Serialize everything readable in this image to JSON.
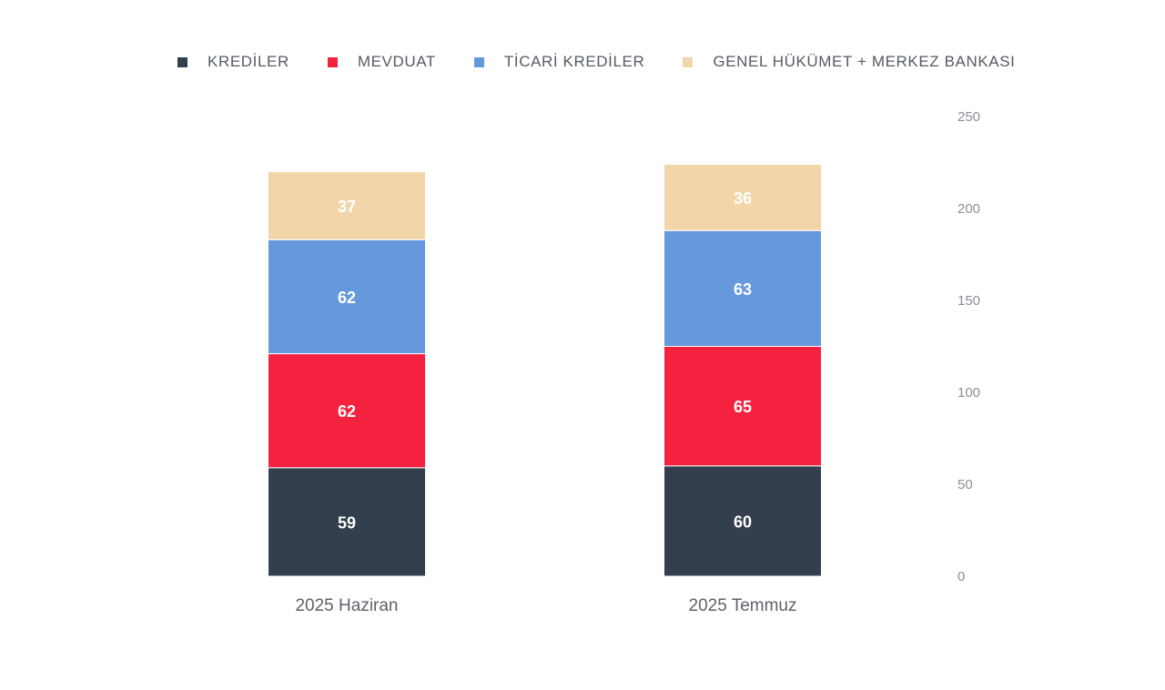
{
  "chart_data": {
    "type": "bar",
    "stacked": true,
    "categories": [
      "2025 Haziran",
      "2025 Temmuz"
    ],
    "series": [
      {
        "name": "KREDİLER",
        "color": "#333f4e",
        "values": [
          59,
          60
        ]
      },
      {
        "name": "MEVDUAT",
        "color": "#f5223f",
        "values": [
          62,
          65
        ]
      },
      {
        "name": "TİCARİ KREDİLER",
        "color": "#6699db",
        "values": [
          62,
          63
        ]
      },
      {
        "name": "GENEL HÜKÜMET + MERKEZ BANKASI",
        "color": "#f2d6aa",
        "values": [
          37,
          36
        ]
      }
    ],
    "ylim": [
      0,
      250
    ],
    "yticks": [
      0,
      50,
      100,
      150,
      200,
      250
    ],
    "ytick_labels": [
      "0",
      "50",
      "100",
      "150",
      "200",
      "250"
    ],
    "y_axis_side": "right",
    "grid": false,
    "legend_position": "top",
    "data_label_color": "#ffffff"
  }
}
